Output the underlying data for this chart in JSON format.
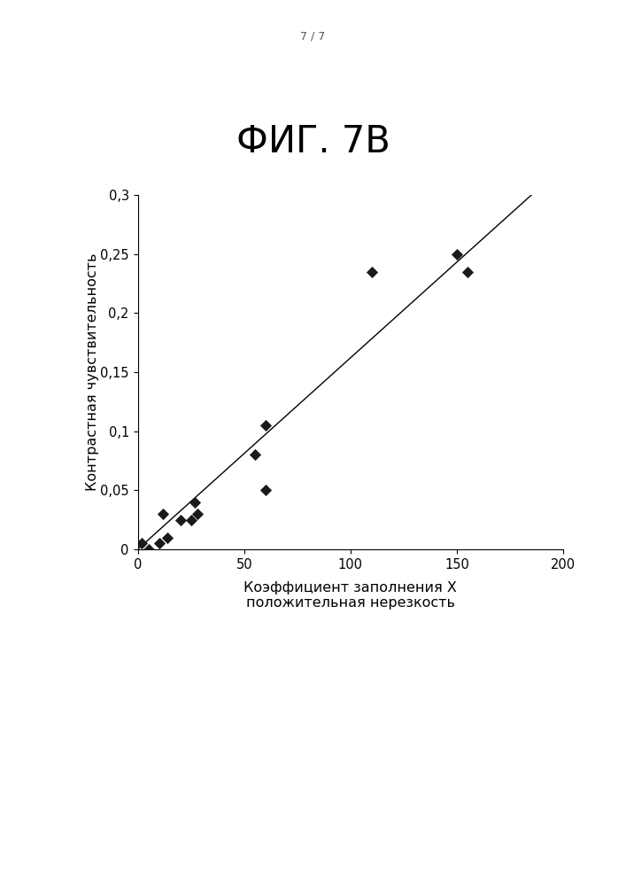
{
  "title": "ФИГ. 7В",
  "page_label": "7 / 7",
  "xlabel_line1": "Коэффициент заполнения Х",
  "xlabel_line2": "положительная нерезкость",
  "ylabel": "Контрастная чувствительность",
  "scatter_x": [
    2,
    5,
    10,
    12,
    14,
    20,
    25,
    27,
    28,
    60,
    55,
    60,
    110,
    150,
    155
  ],
  "scatter_y": [
    0.005,
    0.0,
    0.005,
    0.03,
    0.01,
    0.025,
    0.025,
    0.04,
    0.03,
    0.05,
    0.08,
    0.105,
    0.235,
    0.25,
    0.235
  ],
  "line_x": [
    0,
    185
  ],
  "line_y": [
    0.0,
    0.3
  ],
  "xlim": [
    0,
    200
  ],
  "ylim": [
    0,
    0.3
  ],
  "xticks": [
    0,
    50,
    100,
    150,
    200
  ],
  "yticks": [
    0,
    0.05,
    0.1,
    0.15,
    0.2,
    0.25,
    0.3
  ],
  "ytick_labels": [
    "0",
    "0,05",
    "0,1",
    "0,15",
    "0,2",
    "0,25",
    "0,3"
  ],
  "marker_color": "#1a1a1a",
  "line_color": "#000000",
  "bg_color": "#ffffff",
  "title_fontsize": 30,
  "label_fontsize": 11.5,
  "tick_fontsize": 10.5,
  "page_label_fontsize": 9
}
